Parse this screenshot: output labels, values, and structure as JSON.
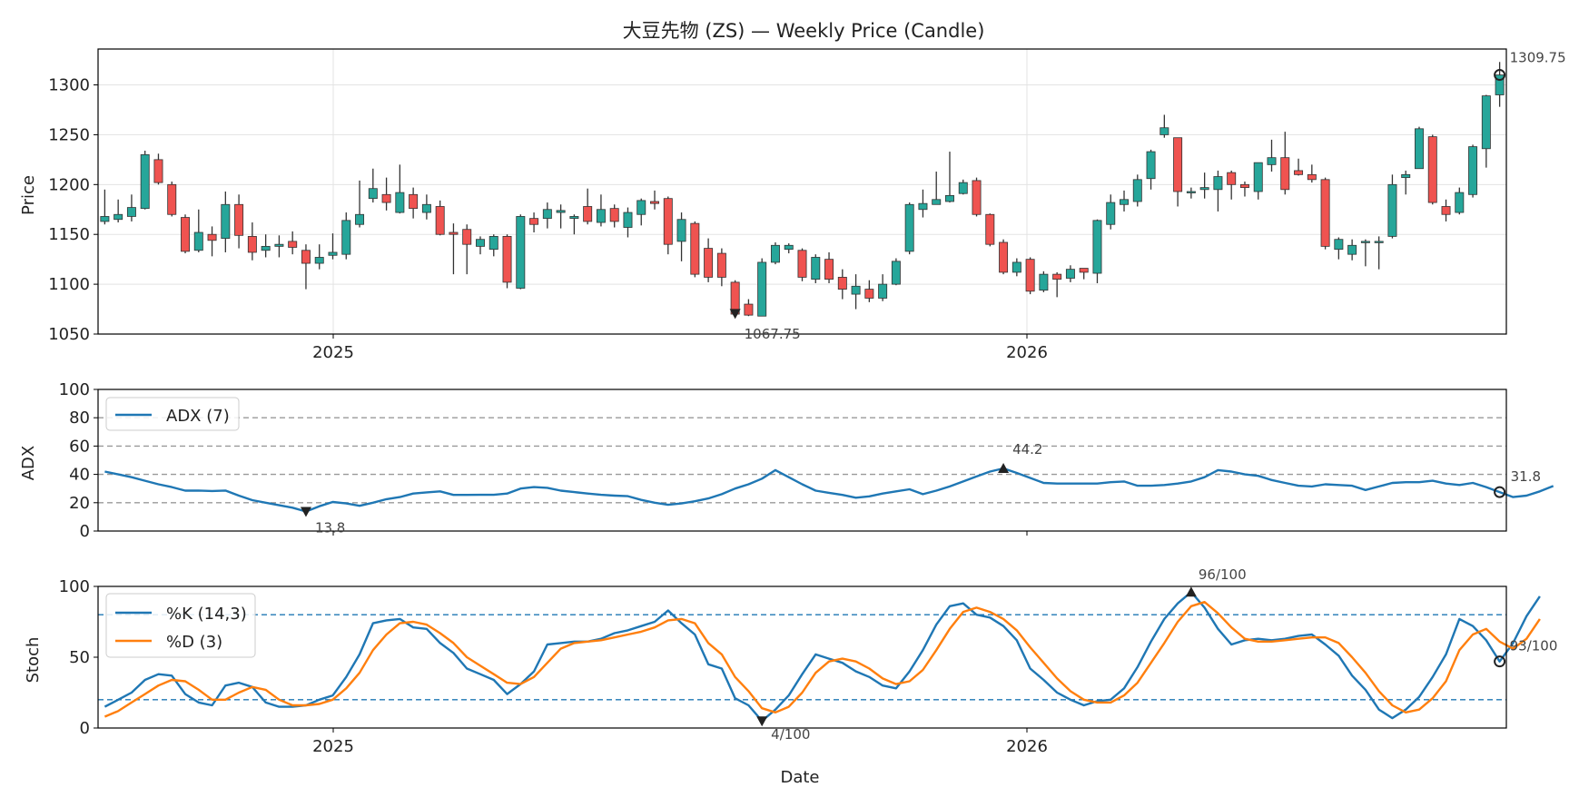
{
  "chart_data": [
    {
      "type": "candlestick",
      "title": "大豆先物 (ZS) — Weekly Price (Candle)",
      "ylabel": "Price",
      "ylim": [
        1050,
        1336
      ],
      "yticks": [
        1050,
        1100,
        1150,
        1200,
        1250,
        1300
      ],
      "xticks": [
        "2025",
        "2026"
      ],
      "grid": true,
      "colors": {
        "up": "#26a69a",
        "down": "#ef5350"
      },
      "series": [
        [
          1163,
          1168,
          1195,
          1160
        ],
        [
          1165,
          1170,
          1185,
          1162
        ],
        [
          1168,
          1177,
          1190,
          1163
        ],
        [
          1176,
          1230,
          1234,
          1175
        ],
        [
          1225,
          1202,
          1231,
          1200
        ],
        [
          1200,
          1170,
          1203,
          1168
        ],
        [
          1167,
          1133,
          1170,
          1131
        ],
        [
          1134,
          1152,
          1175,
          1132
        ],
        [
          1150,
          1144,
          1158,
          1128
        ],
        [
          1146,
          1180,
          1193,
          1132
        ],
        [
          1180,
          1149,
          1190,
          1136
        ],
        [
          1148,
          1132,
          1162,
          1124
        ],
        [
          1134,
          1138,
          1150,
          1127
        ],
        [
          1138,
          1140,
          1149,
          1127
        ],
        [
          1143,
          1137,
          1153,
          1130
        ],
        [
          1134,
          1121,
          1140,
          1095
        ],
        [
          1121,
          1127,
          1140,
          1115
        ],
        [
          1129,
          1132,
          1151,
          1125
        ],
        [
          1130,
          1164,
          1172,
          1125
        ],
        [
          1160,
          1170,
          1204,
          1157
        ],
        [
          1186,
          1196,
          1216,
          1182
        ],
        [
          1190,
          1182,
          1207,
          1174
        ],
        [
          1172,
          1192,
          1220,
          1171
        ],
        [
          1190,
          1176,
          1197,
          1166
        ],
        [
          1172,
          1180,
          1190,
          1165
        ],
        [
          1178,
          1150,
          1184,
          1149
        ],
        [
          1152,
          1150,
          1161,
          1110
        ],
        [
          1155,
          1140,
          1160,
          1110
        ],
        [
          1138,
          1145,
          1148,
          1130
        ],
        [
          1135,
          1148,
          1150,
          1128
        ],
        [
          1148,
          1102,
          1150,
          1096
        ],
        [
          1096,
          1168,
          1170,
          1095
        ],
        [
          1166,
          1160,
          1172,
          1152
        ],
        [
          1166,
          1175,
          1182,
          1156
        ],
        [
          1172,
          1174,
          1180,
          1156
        ],
        [
          1166,
          1168,
          1170,
          1150
        ],
        [
          1178,
          1163,
          1196,
          1160
        ],
        [
          1162,
          1175,
          1190,
          1158
        ],
        [
          1176,
          1163,
          1180,
          1157
        ],
        [
          1157,
          1172,
          1177,
          1147
        ],
        [
          1170,
          1184,
          1186,
          1159
        ],
        [
          1183,
          1181,
          1194,
          1175
        ],
        [
          1186,
          1140,
          1188,
          1130
        ],
        [
          1143,
          1165,
          1172,
          1123
        ],
        [
          1161,
          1110,
          1163,
          1107
        ],
        [
          1136,
          1107,
          1146,
          1102
        ],
        [
          1131,
          1107,
          1136,
          1098
        ],
        [
          1102,
          1070,
          1104,
          1067
        ],
        [
          1080,
          1069,
          1085,
          1068
        ],
        [
          1068,
          1122,
          1126,
          1068
        ],
        [
          1122,
          1139,
          1142,
          1120
        ],
        [
          1135,
          1139,
          1141,
          1131
        ],
        [
          1134,
          1107,
          1136,
          1103
        ],
        [
          1105,
          1127,
          1130,
          1101
        ],
        [
          1125,
          1105,
          1132,
          1101
        ],
        [
          1107,
          1095,
          1115,
          1085
        ],
        [
          1090,
          1098,
          1110,
          1075
        ],
        [
          1095,
          1086,
          1104,
          1082
        ],
        [
          1086,
          1100,
          1110,
          1083
        ],
        [
          1100,
          1123,
          1126,
          1099
        ],
        [
          1133,
          1180,
          1182,
          1130
        ],
        [
          1175,
          1181,
          1195,
          1167
        ],
        [
          1180,
          1185,
          1213,
          1181
        ],
        [
          1183,
          1189,
          1233,
          1182
        ],
        [
          1191,
          1202,
          1205,
          1190
        ],
        [
          1204,
          1170,
          1207,
          1168
        ],
        [
          1170,
          1140,
          1171,
          1138
        ],
        [
          1142,
          1112,
          1145,
          1110
        ],
        [
          1112,
          1122,
          1126,
          1108
        ],
        [
          1125,
          1093,
          1127,
          1090
        ],
        [
          1094,
          1110,
          1113,
          1092
        ],
        [
          1110,
          1105,
          1112,
          1087
        ],
        [
          1106,
          1115,
          1119,
          1102
        ],
        [
          1116,
          1112,
          1115,
          1105
        ],
        [
          1111,
          1164,
          1165,
          1101
        ],
        [
          1160,
          1182,
          1190,
          1155
        ],
        [
          1180,
          1185,
          1194,
          1173
        ],
        [
          1183,
          1205,
          1210,
          1178
        ],
        [
          1206,
          1233,
          1235,
          1195
        ],
        [
          1250,
          1257,
          1270,
          1247
        ],
        [
          1247,
          1193,
          1247,
          1178
        ],
        [
          1192,
          1193,
          1197,
          1186
        ],
        [
          1195,
          1197,
          1212,
          1186
        ],
        [
          1195,
          1208,
          1214,
          1173
        ],
        [
          1212,
          1200,
          1214,
          1185
        ],
        [
          1200,
          1197,
          1203,
          1188
        ],
        [
          1193,
          1222,
          1222,
          1185
        ],
        [
          1220,
          1227,
          1245,
          1213
        ],
        [
          1227,
          1195,
          1253,
          1190
        ],
        [
          1214,
          1210,
          1226,
          1209
        ],
        [
          1210,
          1205,
          1220,
          1202
        ],
        [
          1205,
          1138,
          1207,
          1135
        ],
        [
          1135,
          1145,
          1147,
          1125
        ],
        [
          1130,
          1139,
          1145,
          1124
        ],
        [
          1142,
          1143,
          1145,
          1118
        ],
        [
          1143,
          1143,
          1148,
          1115
        ],
        [
          1148,
          1200,
          1210,
          1146
        ],
        [
          1207,
          1210,
          1214,
          1190
        ],
        [
          1216,
          1256,
          1258,
          1216
        ],
        [
          1248,
          1182,
          1250,
          1180
        ],
        [
          1178,
          1170,
          1185,
          1163
        ],
        [
          1172,
          1192,
          1197,
          1170
        ],
        [
          1190,
          1238,
          1240,
          1187
        ],
        [
          1236,
          1289,
          1290,
          1217
        ],
        [
          1290,
          1310,
          1323,
          1278
        ]
      ],
      "min_annotation": "1067.75",
      "max_annotation": "1309.75"
    },
    {
      "type": "line",
      "ylabel": "ADX",
      "ylim": [
        0,
        100
      ],
      "yticks": [
        0,
        20,
        40,
        60,
        80,
        100
      ],
      "reference_lines": [
        20,
        40,
        60,
        80
      ],
      "series": [
        {
          "name": "ADX (7)",
          "color": "#1f77b4",
          "values": [
            42,
            40,
            38,
            35.5,
            33,
            31,
            28.5,
            28.6,
            28.3,
            28.6,
            25,
            21.8,
            20,
            18.2,
            16.5,
            13.8,
            17.5,
            20.5,
            19.5,
            17.8,
            20,
            22.5,
            24,
            26.5,
            27.3,
            28,
            25.5,
            25.5,
            25.6,
            25.6,
            26.5,
            30,
            31,
            30.5,
            28.5,
            27.5,
            26.5,
            25.6,
            25,
            24.6,
            22,
            20,
            18.5,
            19.5,
            21,
            23,
            26,
            30,
            33,
            37,
            43,
            38,
            33,
            28.5,
            27,
            25.5,
            23.5,
            24.5,
            26.5,
            28,
            29.5,
            26,
            28.5,
            31.5,
            35,
            38.5,
            42,
            44.2,
            41,
            37.5,
            34,
            33.5,
            33.5,
            33.5,
            33.5,
            34.5,
            35,
            32,
            32,
            32.5,
            33.5,
            35,
            38,
            43,
            42,
            40,
            39,
            36,
            34,
            32,
            31.5,
            33,
            32.5,
            32,
            29,
            31.5,
            34,
            34.5,
            34.5,
            35.5,
            33.5,
            32.5,
            34,
            31,
            27.5,
            24,
            25,
            28,
            31.8
          ]
        }
      ],
      "min_annotation": "13.8",
      "max_annotation": "44.2",
      "last_annotation": "31.8"
    },
    {
      "type": "line",
      "xlabel": "Date",
      "ylabel": "Stoch",
      "ylim": [
        0,
        100
      ],
      "yticks": [
        0,
        50,
        100
      ],
      "xticks": [
        "2025",
        "2026"
      ],
      "reference_lines": [
        20,
        80
      ],
      "series": [
        {
          "name": "%K (14,3)",
          "color": "#1f77b4",
          "values": [
            15,
            20,
            25,
            34,
            38,
            37,
            24,
            18,
            16,
            30,
            32,
            29,
            18,
            15,
            15,
            16,
            20,
            23,
            36,
            52,
            74,
            76,
            77,
            71,
            70,
            60,
            53,
            42,
            38,
            34,
            24,
            31,
            40,
            59,
            60,
            61,
            61,
            63,
            67,
            69,
            72,
            75,
            83,
            74,
            66,
            45,
            42,
            21,
            16,
            5,
            13,
            23,
            38,
            52,
            49,
            46,
            40,
            36,
            30,
            28,
            40,
            55,
            73,
            86,
            88,
            80,
            78,
            72,
            62,
            42,
            34,
            25,
            20,
            16,
            19,
            20,
            28,
            43,
            61,
            77,
            88,
            96,
            85,
            70,
            59,
            62,
            63,
            62,
            63,
            65,
            66,
            59,
            51,
            37,
            27,
            13,
            7,
            13,
            22,
            36,
            52,
            77,
            72,
            62,
            47,
            60,
            79,
            93
          ]
        },
        {
          "name": "%D (3)",
          "color": "#ff7f0e",
          "values": [
            8,
            12,
            18,
            24,
            30,
            34,
            33,
            27,
            20,
            20,
            25,
            29,
            27,
            20,
            16,
            16,
            17,
            20,
            28,
            39,
            55,
            66,
            74,
            75,
            73,
            67,
            60,
            50,
            44,
            38,
            32,
            31,
            36,
            46,
            56,
            60,
            61,
            62,
            64,
            66,
            68,
            71,
            76,
            77,
            74,
            60,
            52,
            36,
            26,
            14,
            11,
            15,
            25,
            39,
            47,
            49,
            47,
            42,
            35,
            31,
            33,
            41,
            55,
            70,
            82,
            85,
            82,
            77,
            69,
            57,
            46,
            35,
            26,
            20,
            18,
            18,
            23,
            32,
            46,
            60,
            75,
            86,
            89,
            81,
            71,
            63,
            61,
            61,
            62,
            63,
            64,
            64,
            60,
            50,
            39,
            26,
            16,
            11,
            13,
            21,
            33,
            55,
            66,
            70,
            61,
            56,
            63,
            77
          ]
        }
      ],
      "min_annotation": "4/100",
      "max_annotation": "96/100",
      "last_annotation": "93/100"
    }
  ]
}
